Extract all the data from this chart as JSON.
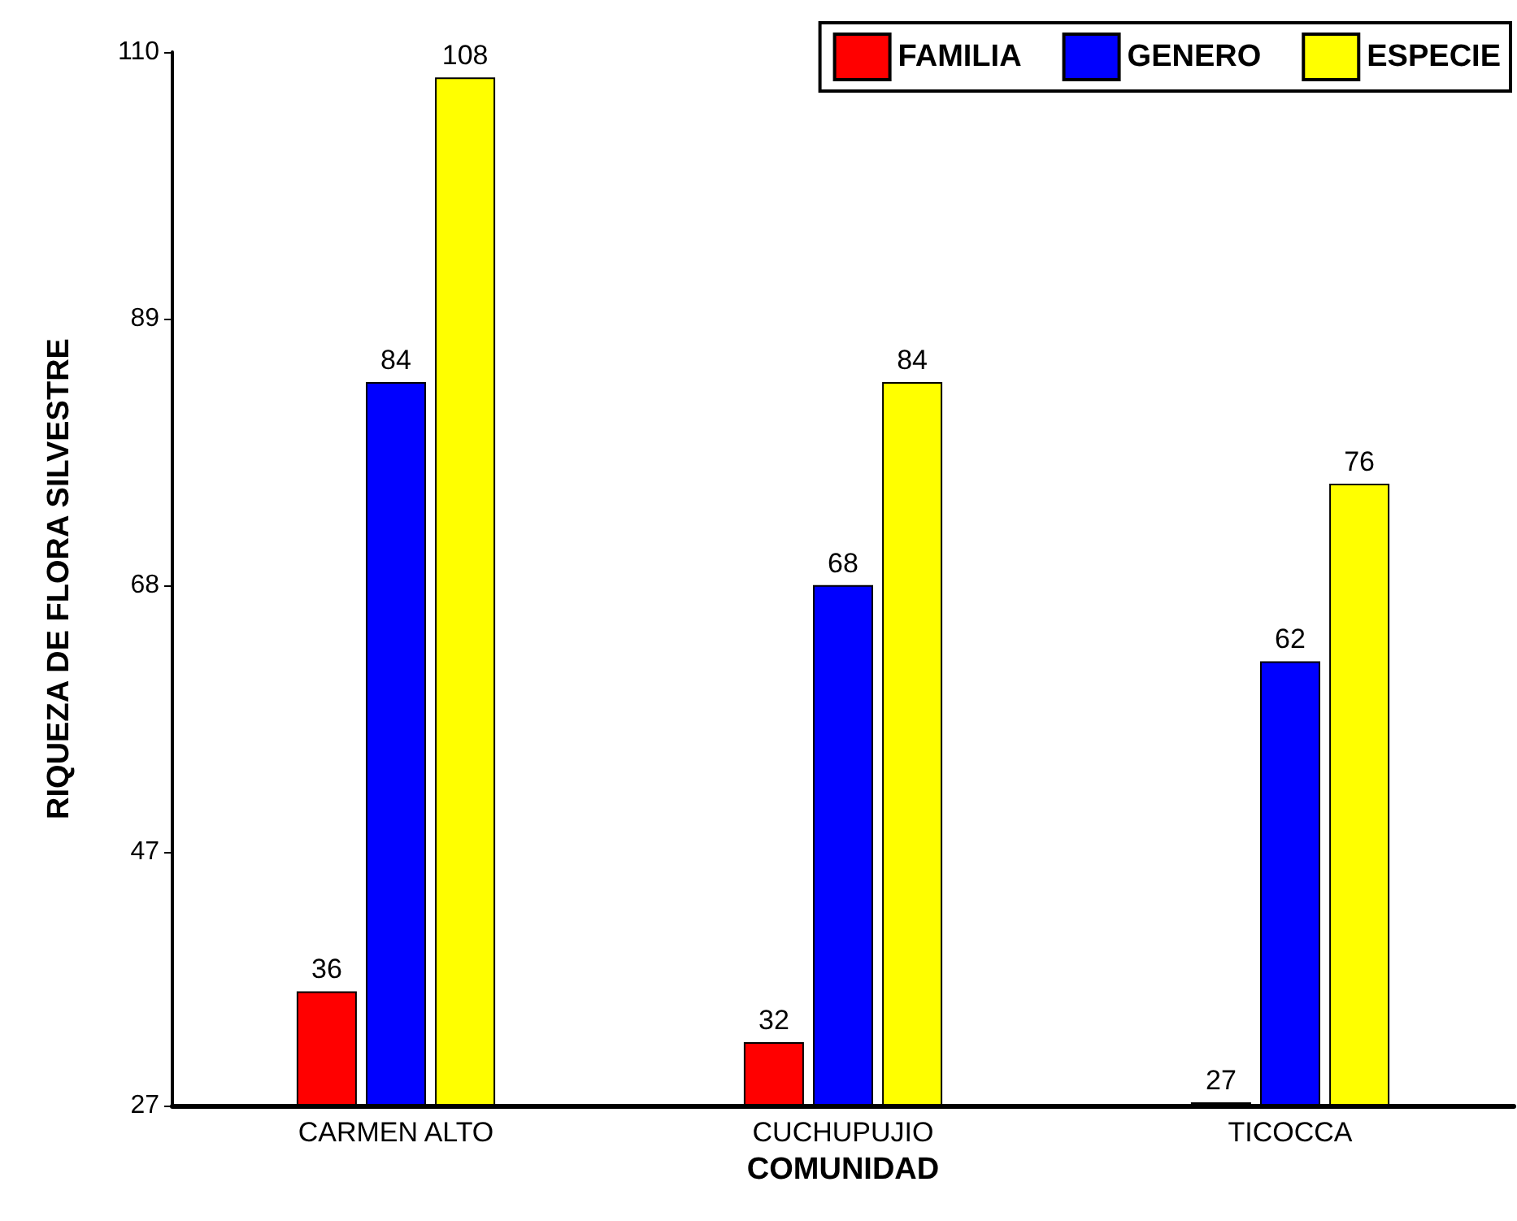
{
  "chart_data": {
    "type": "bar",
    "xlabel": "COMUNIDAD",
    "ylabel": "RIQUEZA DE FLORA SILVESTRE",
    "categories": [
      "CARMEN ALTO",
      "CUCHUPUJIO",
      "TICOCCA"
    ],
    "series": [
      {
        "name": "FAMILIA",
        "color": "#ff0000",
        "values": [
          36,
          32,
          27
        ]
      },
      {
        "name": "GENERO",
        "color": "#0000ff",
        "values": [
          84,
          68,
          62
        ]
      },
      {
        "name": "ESPECIE",
        "color": "#ffff00",
        "values": [
          108,
          84,
          76
        ]
      }
    ],
    "ylim": [
      27,
      110
    ],
    "yticks": [
      27,
      47,
      68,
      89,
      110
    ],
    "data_labels": true,
    "legend": "top right",
    "grid": false
  }
}
